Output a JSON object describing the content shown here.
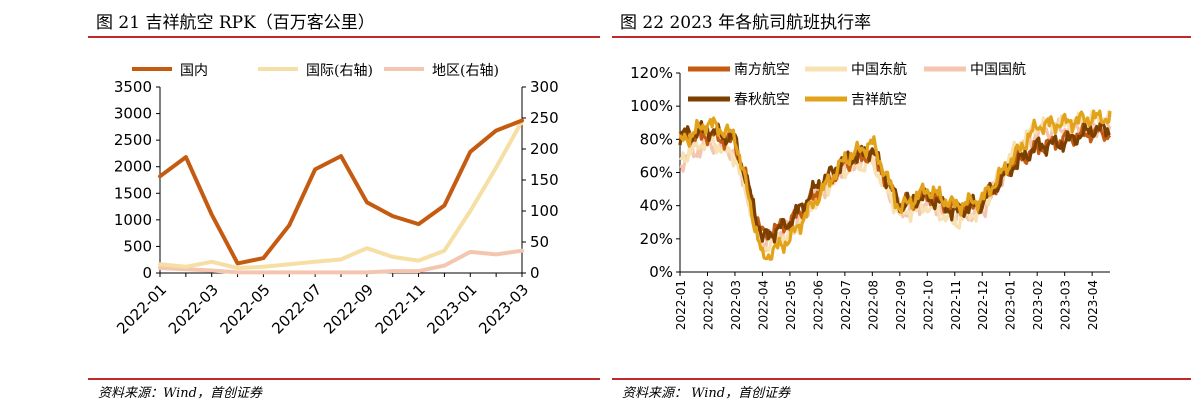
{
  "left_panel": {
    "title": "图 21 吉祥航空 RPK（百万客公里）",
    "source": "资料来源：Wind，首创证券"
  },
  "right_panel": {
    "title": "图 22 2023 年各航司航班执行率",
    "source": "资料来源： Wind，首创证券"
  },
  "colors": {
    "accent_rule": "#c0282d",
    "domestic": "#c55a11",
    "international": "#f6dfa4",
    "regional": "#f4c6b0",
    "china_southern": "#c55a11",
    "china_eastern": "#f8e2b4",
    "air_china": "#f4c6b0",
    "spring": "#7b3f00",
    "juneyao": "#e2a31a"
  },
  "chart_data": [
    {
      "type": "line",
      "title": "图 21 吉祥航空 RPK（百万客公里）",
      "categories": [
        "2022-01",
        "2022-02",
        "2022-03",
        "2022-04",
        "2022-05",
        "2022-06",
        "2022-07",
        "2022-08",
        "2022-09",
        "2022-10",
        "2022-11",
        "2022-12",
        "2023-01",
        "2023-02",
        "2023-03"
      ],
      "x_tick_labels": [
        "2022-01",
        "2022-03",
        "2022-05",
        "2022-07",
        "2022-09",
        "2022-11",
        "2023-01",
        "2023-03"
      ],
      "ylim_left": [
        0,
        3500
      ],
      "yticks_left": [
        "0",
        "500",
        "1000",
        "1500",
        "2000",
        "2500",
        "3000",
        "3500"
      ],
      "ylim_right": [
        0,
        300
      ],
      "yticks_right": [
        "0",
        "50",
        "100",
        "150",
        "200",
        "250",
        "300"
      ],
      "legend_position": "top",
      "grid": false,
      "series": [
        {
          "name": "国内",
          "axis": "left",
          "color_key": "domestic",
          "values": [
            1820,
            2180,
            1100,
            180,
            280,
            900,
            1950,
            2200,
            1330,
            1070,
            920,
            1270,
            2280,
            2680,
            2870
          ]
        },
        {
          "name": "国际(右轴)",
          "axis": "right",
          "color_key": "international",
          "values": [
            14,
            10,
            18,
            8,
            10,
            14,
            18,
            22,
            40,
            26,
            20,
            36,
            100,
            170,
            245
          ]
        },
        {
          "name": "地区(右轴)",
          "axis": "right",
          "color_key": "regional",
          "values": [
            8,
            6,
            4,
            1,
            1,
            1,
            1,
            1,
            1,
            3,
            3,
            12,
            34,
            30,
            36
          ]
        }
      ]
    },
    {
      "type": "line",
      "title": "图 22 2023 年各航司航班执行率",
      "x_tick_labels": [
        "2022-01",
        "2022-02",
        "2022-03",
        "2022-04",
        "2022-05",
        "2022-06",
        "2022-07",
        "2022-08",
        "2022-09",
        "2022-10",
        "2022-11",
        "2022-12",
        "2023-01",
        "2023-02",
        "2023-03",
        "2023-04"
      ],
      "ylim": [
        0,
        120
      ],
      "yticks": [
        "0%",
        "20%",
        "40%",
        "60%",
        "80%",
        "100%",
        "120%"
      ],
      "legend_position": "top-left",
      "grid": false,
      "month_anchor_values": {
        "南方航空": [
          80,
          83,
          78,
          22,
          30,
          48,
          65,
          72,
          40,
          46,
          38,
          42,
          63,
          75,
          80,
          84
        ],
        "中国东航": [
          68,
          80,
          70,
          15,
          22,
          45,
          62,
          66,
          35,
          40,
          30,
          38,
          70,
          88,
          90,
          92
        ],
        "中国国航": [
          65,
          78,
          72,
          16,
          25,
          46,
          63,
          70,
          36,
          42,
          34,
          36,
          66,
          84,
          86,
          88
        ],
        "春秋航空": [
          82,
          86,
          80,
          20,
          30,
          52,
          67,
          74,
          40,
          46,
          36,
          42,
          62,
          76,
          78,
          86
        ],
        "吉祥航空": [
          78,
          90,
          82,
          8,
          20,
          45,
          68,
          78,
          38,
          50,
          40,
          44,
          66,
          88,
          90,
          93
        ]
      },
      "series": [
        {
          "name": "南方航空",
          "color_key": "china_southern"
        },
        {
          "name": "中国东航",
          "color_key": "china_eastern"
        },
        {
          "name": "中国国航",
          "color_key": "air_china"
        },
        {
          "name": "春秋航空",
          "color_key": "spring"
        },
        {
          "name": "吉祥航空",
          "color_key": "juneyao"
        }
      ]
    }
  ]
}
